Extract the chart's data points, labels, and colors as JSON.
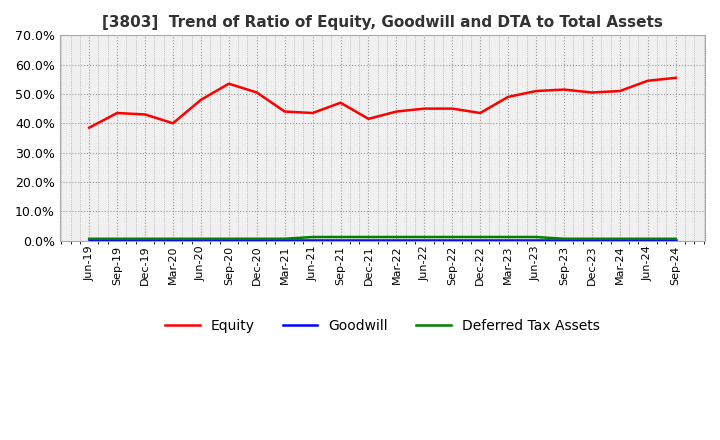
{
  "title": "[3803]  Trend of Ratio of Equity, Goodwill and DTA to Total Assets",
  "x_labels": [
    "Jun-19",
    "Sep-19",
    "Dec-19",
    "Mar-20",
    "Jun-20",
    "Sep-20",
    "Dec-20",
    "Mar-21",
    "Jun-21",
    "Sep-21",
    "Dec-21",
    "Mar-22",
    "Jun-22",
    "Sep-22",
    "Dec-22",
    "Mar-23",
    "Jun-23",
    "Sep-23",
    "Dec-23",
    "Mar-24",
    "Jun-24",
    "Sep-24"
  ],
  "equity": [
    0.385,
    0.435,
    0.43,
    0.4,
    0.48,
    0.535,
    0.505,
    0.44,
    0.435,
    0.47,
    0.415,
    0.44,
    0.45,
    0.45,
    0.435,
    0.49,
    0.51,
    0.515,
    0.505,
    0.51,
    0.545,
    0.555
  ],
  "goodwill": [
    0.002,
    0.002,
    0.002,
    0.002,
    0.002,
    0.002,
    0.002,
    0.002,
    0.002,
    0.002,
    0.002,
    0.002,
    0.002,
    0.002,
    0.002,
    0.002,
    0.002,
    0.002,
    0.002,
    0.002,
    0.002,
    0.002
  ],
  "dta": [
    0.006,
    0.006,
    0.006,
    0.006,
    0.006,
    0.006,
    0.006,
    0.006,
    0.012,
    0.012,
    0.012,
    0.012,
    0.012,
    0.012,
    0.012,
    0.012,
    0.012,
    0.006,
    0.006,
    0.006,
    0.006,
    0.006
  ],
  "equity_color": "#ff0000",
  "goodwill_color": "#0000ff",
  "dta_color": "#008000",
  "ylim": [
    0,
    0.7
  ],
  "yticks": [
    0.0,
    0.1,
    0.2,
    0.3,
    0.4,
    0.5,
    0.6,
    0.7
  ],
  "background_color": "#ffffff",
  "plot_bg_color": "#f0f0f0",
  "grid_color": "#999999",
  "title_fontsize": 11,
  "legend_labels": [
    "Equity",
    "Goodwill",
    "Deferred Tax Assets"
  ]
}
